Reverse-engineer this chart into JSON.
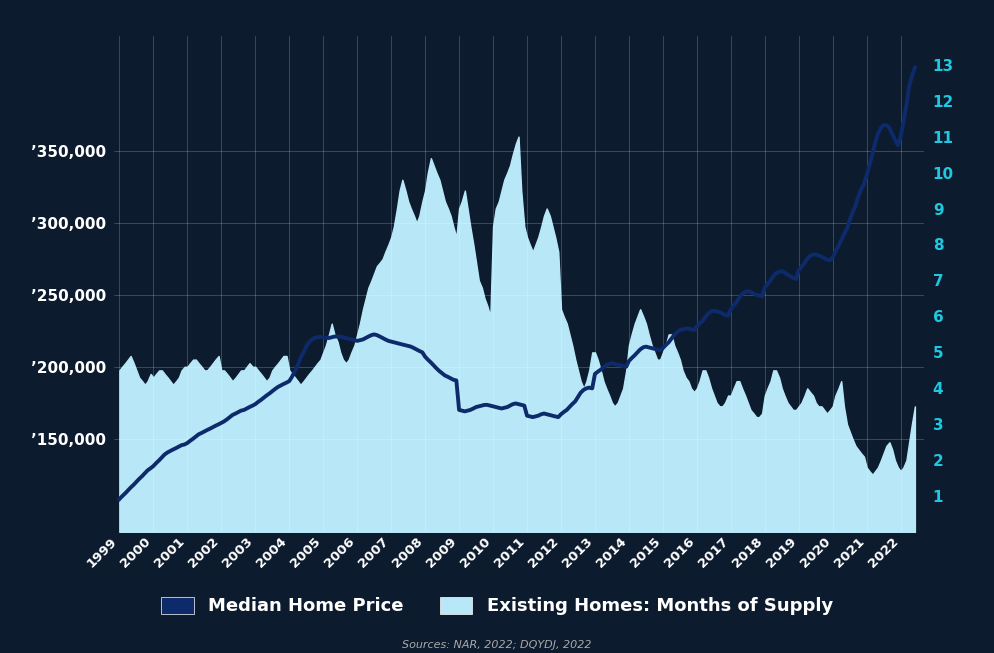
{
  "background_color": "#0d1b2e",
  "grid_color": "#ffffff",
  "source_text": "Sources: NAR, 2022; DQYDJ, 2022",
  "left_axis_color": "#1a5276",
  "right_axis_color": "#1ec8e0",
  "line_color": "#0d2b6b",
  "fill_color": "#b8e8f8",
  "left_yticks": [
    150000,
    200000,
    250000,
    300000,
    350000
  ],
  "left_ylim": [
    85000,
    430000
  ],
  "right_yticks": [
    1,
    2,
    3,
    4,
    5,
    6,
    7,
    8,
    9,
    10,
    11,
    12,
    13
  ],
  "right_ylim": [
    0,
    13.8
  ],
  "xlim": [
    1998.85,
    2022.7
  ],
  "months_supply_x": [
    1999.0,
    1999.08,
    1999.17,
    1999.25,
    1999.33,
    1999.42,
    1999.5,
    1999.58,
    1999.67,
    1999.75,
    1999.83,
    1999.92,
    2000.0,
    2000.08,
    2000.17,
    2000.25,
    2000.33,
    2000.42,
    2000.5,
    2000.58,
    2000.67,
    2000.75,
    2000.83,
    2000.92,
    2001.0,
    2001.08,
    2001.17,
    2001.25,
    2001.33,
    2001.42,
    2001.5,
    2001.58,
    2001.67,
    2001.75,
    2001.83,
    2001.92,
    2002.0,
    2002.08,
    2002.17,
    2002.25,
    2002.33,
    2002.42,
    2002.5,
    2002.58,
    2002.67,
    2002.75,
    2002.83,
    2002.92,
    2003.0,
    2003.08,
    2003.17,
    2003.25,
    2003.33,
    2003.42,
    2003.5,
    2003.58,
    2003.67,
    2003.75,
    2003.83,
    2003.92,
    2004.0,
    2004.08,
    2004.17,
    2004.25,
    2004.33,
    2004.42,
    2004.5,
    2004.58,
    2004.67,
    2004.75,
    2004.83,
    2004.92,
    2005.0,
    2005.08,
    2005.17,
    2005.25,
    2005.33,
    2005.42,
    2005.5,
    2005.58,
    2005.67,
    2005.75,
    2005.83,
    2005.92,
    2006.0,
    2006.08,
    2006.17,
    2006.25,
    2006.33,
    2006.42,
    2006.5,
    2006.58,
    2006.67,
    2006.75,
    2006.83,
    2006.92,
    2007.0,
    2007.08,
    2007.17,
    2007.25,
    2007.33,
    2007.42,
    2007.5,
    2007.58,
    2007.67,
    2007.75,
    2007.83,
    2007.92,
    2008.0,
    2008.08,
    2008.17,
    2008.25,
    2008.33,
    2008.42,
    2008.5,
    2008.58,
    2008.67,
    2008.75,
    2008.83,
    2008.92,
    2009.0,
    2009.08,
    2009.17,
    2009.25,
    2009.33,
    2009.42,
    2009.5,
    2009.58,
    2009.67,
    2009.75,
    2009.83,
    2009.92,
    2010.0,
    2010.08,
    2010.17,
    2010.25,
    2010.33,
    2010.42,
    2010.5,
    2010.58,
    2010.67,
    2010.75,
    2010.83,
    2010.92,
    2011.0,
    2011.08,
    2011.17,
    2011.25,
    2011.33,
    2011.42,
    2011.5,
    2011.58,
    2011.67,
    2011.75,
    2011.83,
    2011.92,
    2012.0,
    2012.08,
    2012.17,
    2012.25,
    2012.33,
    2012.42,
    2012.5,
    2012.58,
    2012.67,
    2012.75,
    2012.83,
    2012.92,
    2013.0,
    2013.08,
    2013.17,
    2013.25,
    2013.33,
    2013.42,
    2013.5,
    2013.58,
    2013.67,
    2013.75,
    2013.83,
    2013.92,
    2014.0,
    2014.08,
    2014.17,
    2014.25,
    2014.33,
    2014.42,
    2014.5,
    2014.58,
    2014.67,
    2014.75,
    2014.83,
    2014.92,
    2015.0,
    2015.08,
    2015.17,
    2015.25,
    2015.33,
    2015.42,
    2015.5,
    2015.58,
    2015.67,
    2015.75,
    2015.83,
    2015.92,
    2016.0,
    2016.08,
    2016.17,
    2016.25,
    2016.33,
    2016.42,
    2016.5,
    2016.58,
    2016.67,
    2016.75,
    2016.83,
    2016.92,
    2017.0,
    2017.08,
    2017.17,
    2017.25,
    2017.33,
    2017.42,
    2017.5,
    2017.58,
    2017.67,
    2017.75,
    2017.83,
    2017.92,
    2018.0,
    2018.08,
    2018.17,
    2018.25,
    2018.33,
    2018.42,
    2018.5,
    2018.58,
    2018.67,
    2018.75,
    2018.83,
    2018.92,
    2019.0,
    2019.08,
    2019.17,
    2019.25,
    2019.33,
    2019.42,
    2019.5,
    2019.58,
    2019.67,
    2019.75,
    2019.83,
    2019.92,
    2020.0,
    2020.08,
    2020.17,
    2020.25,
    2020.33,
    2020.42,
    2020.5,
    2020.58,
    2020.67,
    2020.75,
    2020.83,
    2020.92,
    2021.0,
    2021.08,
    2021.17,
    2021.25,
    2021.33,
    2021.42,
    2021.5,
    2021.58,
    2021.67,
    2021.75,
    2021.83,
    2021.92,
    2022.0,
    2022.08,
    2022.17,
    2022.25,
    2022.33,
    2022.42
  ],
  "months_supply_y": [
    4.5,
    4.6,
    4.7,
    4.8,
    4.9,
    4.7,
    4.5,
    4.3,
    4.2,
    4.1,
    4.2,
    4.4,
    4.3,
    4.4,
    4.5,
    4.5,
    4.4,
    4.3,
    4.2,
    4.1,
    4.2,
    4.3,
    4.5,
    4.6,
    4.6,
    4.7,
    4.8,
    4.8,
    4.7,
    4.6,
    4.5,
    4.5,
    4.6,
    4.7,
    4.8,
    4.9,
    4.5,
    4.5,
    4.4,
    4.3,
    4.2,
    4.3,
    4.4,
    4.5,
    4.5,
    4.6,
    4.7,
    4.6,
    4.6,
    4.5,
    4.4,
    4.3,
    4.2,
    4.3,
    4.5,
    4.6,
    4.7,
    4.8,
    4.9,
    4.9,
    4.5,
    4.4,
    4.3,
    4.2,
    4.1,
    4.2,
    4.3,
    4.4,
    4.5,
    4.6,
    4.7,
    4.8,
    5.0,
    5.2,
    5.5,
    5.8,
    5.5,
    5.3,
    5.0,
    4.8,
    4.7,
    4.8,
    5.0,
    5.2,
    5.5,
    5.8,
    6.2,
    6.5,
    6.8,
    7.0,
    7.2,
    7.4,
    7.5,
    7.6,
    7.8,
    8.0,
    8.2,
    8.5,
    9.0,
    9.5,
    9.8,
    9.5,
    9.2,
    9.0,
    8.8,
    8.6,
    8.8,
    9.2,
    9.5,
    10.0,
    10.4,
    10.2,
    10.0,
    9.8,
    9.5,
    9.2,
    9.0,
    8.8,
    8.5,
    8.2,
    9.0,
    9.2,
    9.5,
    9.0,
    8.5,
    8.0,
    7.5,
    7.0,
    6.8,
    6.5,
    6.3,
    6.0,
    8.5,
    9.0,
    9.2,
    9.5,
    9.8,
    10.0,
    10.2,
    10.5,
    10.8,
    11.0,
    9.5,
    8.5,
    8.2,
    8.0,
    7.8,
    8.0,
    8.2,
    8.5,
    8.8,
    9.0,
    8.8,
    8.5,
    8.2,
    7.8,
    6.2,
    6.0,
    5.8,
    5.5,
    5.2,
    4.8,
    4.5,
    4.2,
    4.0,
    4.2,
    4.5,
    5.0,
    5.0,
    4.8,
    4.5,
    4.2,
    4.0,
    3.8,
    3.6,
    3.5,
    3.6,
    3.8,
    4.0,
    4.5,
    5.2,
    5.5,
    5.8,
    6.0,
    6.2,
    6.0,
    5.8,
    5.5,
    5.2,
    5.0,
    4.8,
    4.8,
    5.0,
    5.2,
    5.5,
    5.5,
    5.2,
    5.0,
    4.8,
    4.5,
    4.3,
    4.2,
    4.0,
    3.9,
    4.0,
    4.2,
    4.5,
    4.5,
    4.3,
    4.0,
    3.8,
    3.6,
    3.5,
    3.5,
    3.6,
    3.8,
    3.8,
    4.0,
    4.2,
    4.2,
    4.0,
    3.8,
    3.6,
    3.4,
    3.3,
    3.2,
    3.2,
    3.3,
    3.8,
    4.0,
    4.2,
    4.5,
    4.5,
    4.3,
    4.0,
    3.8,
    3.6,
    3.5,
    3.4,
    3.4,
    3.5,
    3.6,
    3.8,
    4.0,
    3.9,
    3.8,
    3.6,
    3.5,
    3.5,
    3.4,
    3.3,
    3.4,
    3.5,
    3.8,
    4.0,
    4.2,
    3.5,
    3.0,
    2.8,
    2.6,
    2.4,
    2.3,
    2.2,
    2.1,
    1.8,
    1.7,
    1.6,
    1.7,
    1.8,
    2.0,
    2.2,
    2.4,
    2.5,
    2.3,
    2.0,
    1.8,
    1.7,
    1.8,
    2.0,
    2.5,
    3.0,
    3.5
  ],
  "price_x": [
    1999.0,
    1999.08,
    1999.17,
    1999.25,
    1999.33,
    1999.42,
    1999.5,
    1999.58,
    1999.67,
    1999.75,
    1999.83,
    1999.92,
    2000.0,
    2000.08,
    2000.17,
    2000.25,
    2000.33,
    2000.42,
    2000.5,
    2000.58,
    2000.67,
    2000.75,
    2000.83,
    2000.92,
    2001.0,
    2001.08,
    2001.17,
    2001.25,
    2001.33,
    2001.42,
    2001.5,
    2001.58,
    2001.67,
    2001.75,
    2001.83,
    2001.92,
    2002.0,
    2002.08,
    2002.17,
    2002.25,
    2002.33,
    2002.42,
    2002.5,
    2002.58,
    2002.67,
    2002.75,
    2002.83,
    2002.92,
    2003.0,
    2003.08,
    2003.17,
    2003.25,
    2003.33,
    2003.42,
    2003.5,
    2003.58,
    2003.67,
    2003.75,
    2003.83,
    2003.92,
    2004.0,
    2004.08,
    2004.17,
    2004.25,
    2004.33,
    2004.42,
    2004.5,
    2004.58,
    2004.67,
    2004.75,
    2004.83,
    2004.92,
    2005.0,
    2005.08,
    2005.17,
    2005.25,
    2005.33,
    2005.42,
    2005.5,
    2005.58,
    2005.67,
    2005.75,
    2005.83,
    2005.92,
    2006.0,
    2006.08,
    2006.17,
    2006.25,
    2006.33,
    2006.42,
    2006.5,
    2006.58,
    2006.67,
    2006.75,
    2006.83,
    2006.92,
    2007.0,
    2007.08,
    2007.17,
    2007.25,
    2007.33,
    2007.42,
    2007.5,
    2007.58,
    2007.67,
    2007.75,
    2007.83,
    2007.92,
    2008.0,
    2008.08,
    2008.17,
    2008.25,
    2008.33,
    2008.42,
    2008.5,
    2008.58,
    2008.67,
    2008.75,
    2008.83,
    2008.92,
    2009.0,
    2009.08,
    2009.17,
    2009.25,
    2009.33,
    2009.42,
    2009.5,
    2009.58,
    2009.67,
    2009.75,
    2009.83,
    2009.92,
    2010.0,
    2010.08,
    2010.17,
    2010.25,
    2010.33,
    2010.42,
    2010.5,
    2010.58,
    2010.67,
    2010.75,
    2010.83,
    2010.92,
    2011.0,
    2011.08,
    2011.17,
    2011.25,
    2011.33,
    2011.42,
    2011.5,
    2011.58,
    2011.67,
    2011.75,
    2011.83,
    2011.92,
    2012.0,
    2012.08,
    2012.17,
    2012.25,
    2012.33,
    2012.42,
    2012.5,
    2012.58,
    2012.67,
    2012.75,
    2012.83,
    2012.92,
    2013.0,
    2013.08,
    2013.17,
    2013.25,
    2013.33,
    2013.42,
    2013.5,
    2013.58,
    2013.67,
    2013.75,
    2013.83,
    2013.92,
    2014.0,
    2014.08,
    2014.17,
    2014.25,
    2014.33,
    2014.42,
    2014.5,
    2014.58,
    2014.67,
    2014.75,
    2014.83,
    2014.92,
    2015.0,
    2015.08,
    2015.17,
    2015.25,
    2015.33,
    2015.42,
    2015.5,
    2015.58,
    2015.67,
    2015.75,
    2015.83,
    2015.92,
    2016.0,
    2016.08,
    2016.17,
    2016.25,
    2016.33,
    2016.42,
    2016.5,
    2016.58,
    2016.67,
    2016.75,
    2016.83,
    2016.92,
    2017.0,
    2017.08,
    2017.17,
    2017.25,
    2017.33,
    2017.42,
    2017.5,
    2017.58,
    2017.67,
    2017.75,
    2017.83,
    2017.92,
    2018.0,
    2018.08,
    2018.17,
    2018.25,
    2018.33,
    2018.42,
    2018.5,
    2018.58,
    2018.67,
    2018.75,
    2018.83,
    2018.92,
    2019.0,
    2019.08,
    2019.17,
    2019.25,
    2019.33,
    2019.42,
    2019.5,
    2019.58,
    2019.67,
    2019.75,
    2019.83,
    2019.92,
    2020.0,
    2020.08,
    2020.17,
    2020.25,
    2020.33,
    2020.42,
    2020.5,
    2020.58,
    2020.67,
    2020.75,
    2020.83,
    2020.92,
    2021.0,
    2021.08,
    2021.17,
    2021.25,
    2021.33,
    2021.42,
    2021.5,
    2021.58,
    2021.67,
    2021.75,
    2021.83,
    2021.92,
    2022.0,
    2022.08,
    2022.17,
    2022.25,
    2022.33,
    2022.42
  ],
  "price_y": [
    108000,
    110000,
    112000,
    114000,
    116000,
    118000,
    120000,
    122000,
    124000,
    126000,
    128000,
    129500,
    131000,
    133000,
    135000,
    137000,
    139000,
    140500,
    141500,
    142500,
    143500,
    144500,
    145500,
    146000,
    147000,
    148500,
    150000,
    151500,
    153000,
    154000,
    155000,
    156000,
    157000,
    158000,
    159000,
    160000,
    161000,
    162000,
    163500,
    165000,
    166500,
    167500,
    168500,
    169500,
    170000,
    171000,
    172000,
    173000,
    174000,
    175500,
    177000,
    178500,
    180000,
    181500,
    183000,
    184500,
    186000,
    187000,
    188000,
    189000,
    190000,
    193000,
    197000,
    201000,
    206000,
    210000,
    214000,
    217000,
    219000,
    220000,
    220500,
    220800,
    220500,
    220200,
    220000,
    220500,
    221000,
    221000,
    221000,
    220500,
    220000,
    219500,
    219000,
    218500,
    218000,
    218500,
    219000,
    220000,
    221000,
    222000,
    222500,
    222000,
    221000,
    220000,
    219000,
    218000,
    217500,
    217000,
    216500,
    216000,
    215500,
    215000,
    214500,
    214000,
    213000,
    212000,
    211000,
    210000,
    207000,
    205000,
    203000,
    201000,
    199000,
    197000,
    195500,
    194000,
    193000,
    192000,
    191000,
    190500,
    170000,
    169500,
    169000,
    169500,
    170000,
    171000,
    172000,
    172500,
    173000,
    173500,
    173500,
    173000,
    172500,
    172000,
    171500,
    171000,
    171500,
    172000,
    173000,
    174000,
    174500,
    174000,
    173500,
    173000,
    166000,
    165500,
    165000,
    165500,
    166000,
    167000,
    167500,
    167000,
    166500,
    166000,
    165500,
    165000,
    167000,
    168500,
    170000,
    172000,
    174000,
    176000,
    179000,
    182000,
    184000,
    185000,
    185500,
    185000,
    195000,
    196500,
    198000,
    199500,
    201000,
    202000,
    202500,
    202000,
    201500,
    201000,
    200500,
    200000,
    204000,
    206000,
    208000,
    210000,
    212000,
    213500,
    214000,
    213500,
    213000,
    212500,
    212000,
    211500,
    213000,
    215000,
    217000,
    219500,
    222000,
    224000,
    225500,
    226000,
    226500,
    226500,
    226000,
    225500,
    228000,
    230000,
    232000,
    234500,
    237000,
    238500,
    239000,
    238500,
    238000,
    237000,
    236000,
    235500,
    240000,
    242500,
    245000,
    248000,
    250500,
    252000,
    252500,
    252000,
    251000,
    250000,
    249500,
    249000,
    255000,
    257500,
    260000,
    263000,
    265000,
    266000,
    266500,
    265500,
    264000,
    263000,
    262000,
    261000,
    267000,
    269500,
    272000,
    275000,
    277000,
    278000,
    278000,
    277500,
    276500,
    275500,
    274500,
    274000,
    276000,
    280000,
    284000,
    288000,
    292000,
    296000,
    302000,
    307000,
    312000,
    318000,
    323000,
    327000,
    333000,
    340000,
    348000,
    356000,
    362000,
    366000,
    368000,
    368000,
    366000,
    362000,
    358000,
    354000,
    360000,
    370000,
    382000,
    395000,
    402000,
    408000
  ],
  "legend_price_label": "Median Home Price",
  "legend_supply_label": "Existing Homes: Months of Supply"
}
